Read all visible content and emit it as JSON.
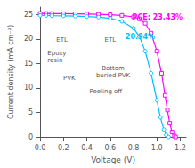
{
  "chart_data": {
    "type": "line",
    "xlabel": "Voltage (V)",
    "ylabel": "Current density (mA cm⁻²)",
    "xlim": [
      0.0,
      1.25
    ],
    "ylim": [
      0.0,
      26.5
    ],
    "xticks": [
      {
        "value": 0.0,
        "label": "0.0"
      },
      0.2,
      0.4,
      0.6,
      0.8,
      {
        "value": 1.0,
        "label": "1.0"
      },
      1.2
    ],
    "yticks": [
      0,
      5,
      10,
      15,
      20,
      25
    ],
    "grid": false,
    "series": [
      {
        "color": "#ff00ff",
        "marker": "square",
        "x": [
          0.0,
          0.05,
          0.1,
          0.2,
          0.3,
          0.4,
          0.5,
          0.6,
          0.7,
          0.8,
          0.85,
          0.9,
          0.95,
          1.0,
          1.04,
          1.07,
          1.09,
          1.11,
          1.13,
          1.15,
          1.16
        ],
        "values": [
          25.2,
          25.2,
          25.18,
          25.15,
          25.12,
          25.08,
          25.02,
          24.95,
          24.8,
          24.5,
          24.1,
          23.2,
          21.2,
          17.5,
          13.0,
          8.5,
          5.5,
          2.8,
          1.0,
          0.2,
          0.0
        ]
      },
      {
        "color": "#00bfff",
        "marker": "circle",
        "x": [
          0.0,
          0.05,
          0.1,
          0.2,
          0.3,
          0.4,
          0.5,
          0.6,
          0.7,
          0.8,
          0.85,
          0.9,
          0.95,
          1.0,
          1.03,
          1.06,
          1.08,
          1.1
        ],
        "values": [
          24.8,
          24.78,
          24.75,
          24.7,
          24.65,
          24.58,
          24.45,
          24.2,
          23.6,
          22.2,
          20.5,
          17.5,
          13.0,
          7.5,
          4.0,
          1.5,
          0.4,
          0.0
        ]
      }
    ],
    "annotations": [
      {
        "text": "PCE: 23.43%",
        "color": "#ff00ff",
        "x": 1.22,
        "y": 25.2
      },
      {
        "text": "20.94%",
        "color": "#00bfff",
        "x": 0.73,
        "y": 20.5
      }
    ],
    "inset_labels": [
      "ETL",
      "ETL",
      "Epoxy\nresin",
      "PVK",
      "Peeling off",
      "Bottom\nburied PVK"
    ]
  }
}
